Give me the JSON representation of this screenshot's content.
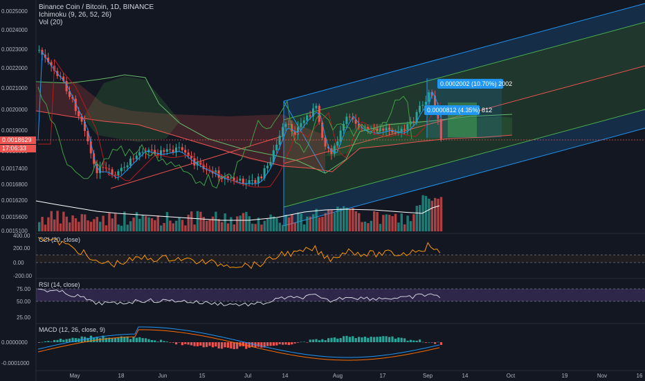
{
  "header": {
    "title": "Binance Coin / Bitcoin, 1D, BINANCE",
    "ichimoku": "Ichimoku (9, 26, 52, 26)",
    "volume": "Vol (20)"
  },
  "price_axis": {
    "labels": [
      "0.0025000",
      "0.0024000",
      "0.0023000",
      "0.0022000",
      "0.0021000",
      "0.0020000",
      "0.0019000",
      "0.0018000",
      "0.0017400",
      "0.0016800",
      "0.0016200",
      "0.0015600",
      "0.0015100"
    ],
    "current_price": "0.0018629",
    "countdown": "17:06:33"
  },
  "measure_labels": {
    "upper": "0.0002002 (10.70%) 2002",
    "lower": "0.0000812 (4.35%) 812"
  },
  "cci": {
    "title": "CCI (20, close)",
    "labels": [
      "400.00",
      "200.00",
      "0.00",
      "-200.00"
    ]
  },
  "rsi": {
    "title": "RSI (14, close)",
    "labels": [
      "75.00",
      "50.00",
      "25.00"
    ]
  },
  "macd": {
    "title": "MACD (12, 26, close, 9)",
    "labels": [
      "0.0000000",
      "-0.0001000"
    ]
  },
  "time_axis": {
    "labels": [
      "May",
      "18",
      "Jun",
      "15",
      "Jul",
      "14",
      "Aug",
      "17",
      "Sep",
      "14",
      "Oct",
      "19",
      "Nov",
      "16"
    ]
  },
  "colors": {
    "background": "#131722",
    "up": "#26a69a",
    "down": "#ef5350",
    "channel": "#2196f3",
    "current_price_tag": "#ef5350"
  }
}
